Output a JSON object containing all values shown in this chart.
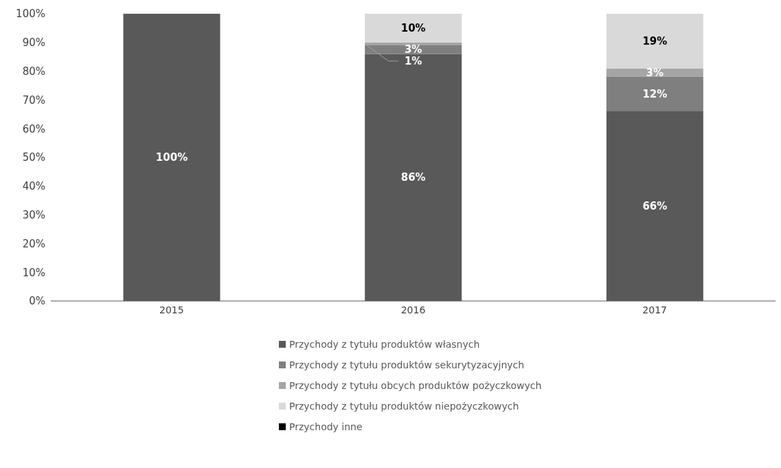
{
  "chart_data": {
    "type": "bar",
    "stacked": true,
    "categories": [
      "2015",
      "2016",
      "2017"
    ],
    "series": [
      {
        "name": "Przychody z tytułu produktów własnych",
        "color": "#595959",
        "values": [
          100,
          86,
          66
        ],
        "value_labels": [
          "100%",
          "86%",
          "66%"
        ]
      },
      {
        "name": "Przychody z tytułu produktów sekurytyzacyjnych",
        "color": "#7f7f7f",
        "values": [
          0,
          3,
          12
        ],
        "value_labels": [
          null,
          "3%",
          "12%"
        ]
      },
      {
        "name": "Przychody z tytułu obcych produktów pożyczkowych",
        "color": "#a5a5a5",
        "values": [
          0,
          1,
          3
        ],
        "value_labels": [
          null,
          "1%",
          "3%"
        ]
      },
      {
        "name": "Przychody z tytułu produktów niepożyczkowych",
        "color": "#d9d9d9",
        "values": [
          0,
          10,
          19
        ],
        "value_labels": [
          null,
          "10%",
          "19%"
        ]
      },
      {
        "name": "Przychody inne",
        "color": "#000000",
        "values": [
          0,
          0,
          0
        ],
        "value_labels": [
          null,
          null,
          null
        ]
      }
    ],
    "ylim": [
      0,
      100
    ],
    "yticks": [
      {
        "value": 0,
        "label": "0%"
      },
      {
        "value": 10,
        "label": "10%"
      },
      {
        "value": 20,
        "label": "20%"
      },
      {
        "value": 30,
        "label": "30%"
      },
      {
        "value": 40,
        "label": "40%"
      },
      {
        "value": 50,
        "label": "50%"
      },
      {
        "value": 60,
        "label": "60%"
      },
      {
        "value": 70,
        "label": "70%"
      },
      {
        "value": 80,
        "label": "80%"
      },
      {
        "value": 90,
        "label": "90%"
      },
      {
        "value": 100,
        "label": "100%"
      }
    ],
    "grid": false,
    "legend": "bottom"
  }
}
